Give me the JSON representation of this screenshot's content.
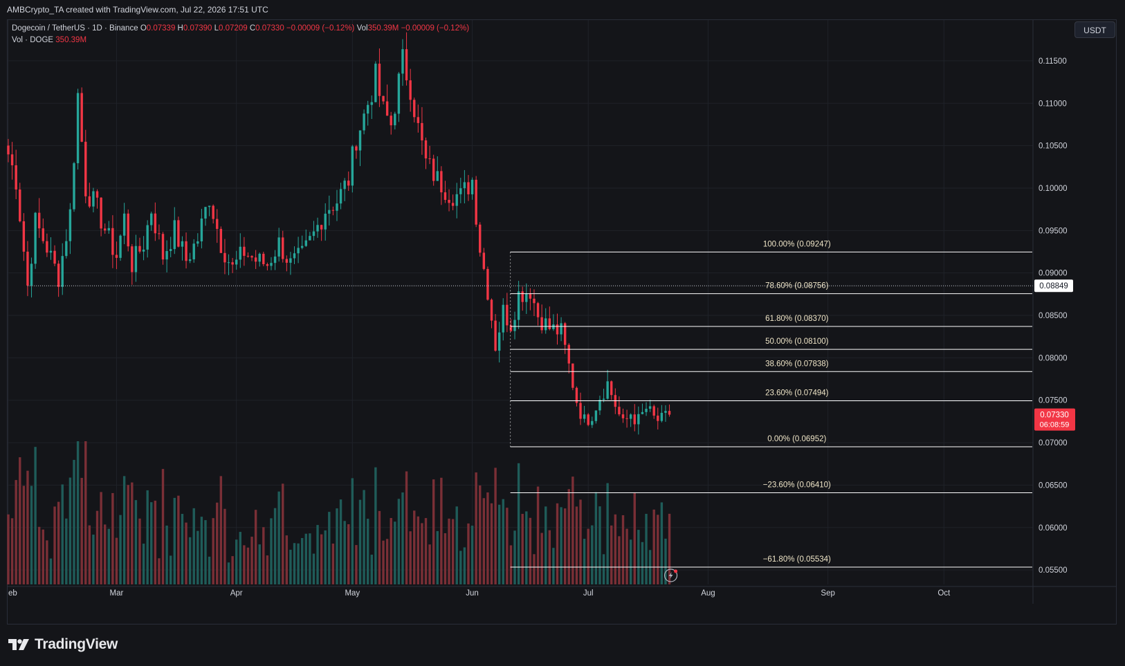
{
  "credit": "AMBCrypto_TA created with TradingView.com, Jul 22, 2026 17:51 UTC",
  "legend": {
    "symbol": "Dogecoin / TetherUS · 1D · Binance",
    "o_label": "O",
    "o_value": "0.07339",
    "h_label": "H",
    "h_value": "0.07390",
    "l_label": "L",
    "l_value": "0.07209",
    "c_label": "C",
    "c_value": "0.07330",
    "change": "−0.00009 (−0.12%)",
    "vol_label": "Vol",
    "vol_value": "350.39M",
    "vol_change": "−0.00009 (−0.12%)",
    "vol_series": "Vol · DOGE",
    "vol_series_value": "350.39M"
  },
  "unit_button": "USDT",
  "brand": "TradingView",
  "colors": {
    "up": "#26a69a",
    "down": "#f23645",
    "background": "#141519",
    "grid": "#1f2229",
    "fib": "#ffffff"
  },
  "chart_data": {
    "type": "candlestick",
    "interval": "1D",
    "x_labels": [
      "eb",
      "Mar",
      "Apr",
      "May",
      "Jun",
      "Jul",
      "Aug",
      "Sep",
      "Oct"
    ],
    "y_ticks": [
      "0.11500",
      "0.11000",
      "0.10500",
      "0.10000",
      "0.09500",
      "0.09000",
      "0.08500",
      "0.08000",
      "0.07500",
      "0.07000",
      "0.06500",
      "0.06000",
      "0.05500"
    ],
    "ylim": [
      0.0533,
      0.1198
    ],
    "price_lines": {
      "last_price": "0.07330",
      "countdown": "06:08:59",
      "crosshair_price": "0.08849"
    },
    "fib_levels": [
      {
        "label": "100.00% (0.09247)",
        "value": 0.09247
      },
      {
        "label": "78.60% (0.08756)",
        "value": 0.08756
      },
      {
        "label": "61.80% (0.08370)",
        "value": 0.0837
      },
      {
        "label": "50.00% (0.08100)",
        "value": 0.081
      },
      {
        "label": "38.60% (0.07838)",
        "value": 0.07838
      },
      {
        "label": "23.60% (0.07494)",
        "value": 0.07494
      },
      {
        "label": "0.00% (0.06952)",
        "value": 0.06952
      },
      {
        "label": "−23.60% (0.06410)",
        "value": 0.0641
      },
      {
        "label": "−61.80% (0.05534)",
        "value": 0.05534
      }
    ],
    "keypoints": [
      [
        "02-01",
        0.104
      ],
      [
        "02-03",
        0.101
      ],
      [
        "02-06",
        0.0885
      ],
      [
        "02-08",
        0.096
      ],
      [
        "02-11",
        0.093
      ],
      [
        "02-14",
        0.0895
      ],
      [
        "02-17",
        0.097
      ],
      [
        "02-19",
        0.111
      ],
      [
        "02-21",
        0.1
      ],
      [
        "02-24",
        0.0975
      ],
      [
        "02-27",
        0.094
      ],
      [
        "03-01",
        0.092
      ],
      [
        "03-03",
        0.0965
      ],
      [
        "03-05",
        0.091
      ],
      [
        "03-08",
        0.0935
      ],
      [
        "03-10",
        0.0975
      ],
      [
        "03-13",
        0.092
      ],
      [
        "03-16",
        0.095
      ],
      [
        "03-19",
        0.0915
      ],
      [
        "03-22",
        0.094
      ],
      [
        "03-25",
        0.099
      ],
      [
        "03-28",
        0.0935
      ],
      [
        "03-31",
        0.0905
      ],
      [
        "04-03",
        0.0925
      ],
      [
        "04-06",
        0.0915
      ],
      [
        "04-09",
        0.091
      ],
      [
        "04-12",
        0.0935
      ],
      [
        "04-15",
        0.091
      ],
      [
        "04-18",
        0.092
      ],
      [
        "04-21",
        0.0945
      ],
      [
        "04-24",
        0.0975
      ],
      [
        "04-27",
        0.0985
      ],
      [
        "04-30",
        0.101
      ],
      [
        "05-02",
        0.106
      ],
      [
        "05-04",
        0.1085
      ],
      [
        "05-07",
        0.113
      ],
      [
        "05-09",
        0.109
      ],
      [
        "05-11",
        0.1075
      ],
      [
        "05-14",
        0.115
      ],
      [
        "05-16",
        0.112
      ],
      [
        "05-18",
        0.107
      ],
      [
        "05-20",
        0.103
      ],
      [
        "05-23",
        0.101
      ],
      [
        "05-26",
        0.0995
      ],
      [
        "05-29",
        0.099
      ],
      [
        "06-01",
        0.101
      ],
      [
        "06-03",
        0.093
      ],
      [
        "06-05",
        0.088
      ],
      [
        "06-07",
        0.0815
      ],
      [
        "06-09",
        0.0855
      ],
      [
        "06-11",
        0.084
      ],
      [
        "06-13",
        0.0875
      ],
      [
        "06-16",
        0.088
      ],
      [
        "06-18",
        0.085
      ],
      [
        "06-21",
        0.0835
      ],
      [
        "06-24",
        0.083
      ],
      [
        "06-26",
        0.079
      ],
      [
        "06-28",
        0.075
      ],
      [
        "06-30",
        0.0725
      ],
      [
        "07-02",
        0.0735
      ],
      [
        "07-04",
        0.0755
      ],
      [
        "07-06",
        0.077
      ],
      [
        "07-08",
        0.0745
      ],
      [
        "07-10",
        0.072
      ],
      [
        "07-12",
        0.0735
      ],
      [
        "07-14",
        0.0725
      ],
      [
        "07-16",
        0.074
      ],
      [
        "07-18",
        0.0728
      ],
      [
        "07-20",
        0.0725
      ],
      [
        "07-22",
        0.0733
      ]
    ]
  }
}
